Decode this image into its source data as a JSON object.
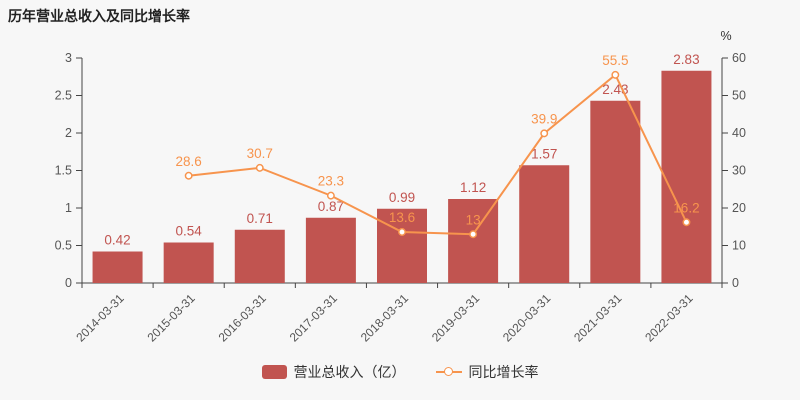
{
  "title": "历年营业总收入及同比增长率",
  "chart_data": {
    "type": "bar+line",
    "categories": [
      "2014-03-31",
      "2015-03-31",
      "2016-03-31",
      "2017-03-31",
      "2018-03-31",
      "2019-03-31",
      "2020-03-31",
      "2021-03-31",
      "2022-03-31"
    ],
    "series": [
      {
        "name": "营业总收入（亿）",
        "type": "bar",
        "axis": "left",
        "color": "#c15450",
        "values": [
          0.42,
          0.54,
          0.71,
          0.87,
          0.99,
          1.12,
          1.57,
          2.43,
          2.83
        ]
      },
      {
        "name": "同比增长率",
        "type": "line",
        "axis": "right",
        "color": "#f7944d",
        "values": [
          null,
          28.6,
          30.7,
          23.3,
          13.6,
          13,
          39.9,
          55.5,
          16.2
        ]
      }
    ],
    "left_axis": {
      "min": 0,
      "max": 3,
      "labels": [
        "0",
        "0.5",
        "1",
        "1.5",
        "2",
        "2.5",
        "3"
      ]
    },
    "right_axis": {
      "min": 0,
      "max": 60,
      "labels": [
        "0",
        "10",
        "20",
        "30",
        "40",
        "50",
        "60"
      ],
      "unit": "%"
    },
    "grid": false,
    "legend_position": "bottom",
    "xlabel": "",
    "ylabel": ""
  },
  "legend": {
    "items": [
      {
        "label": "营业总收入（亿）",
        "type": "bar",
        "color": "#c15450"
      },
      {
        "label": "同比增长率",
        "type": "line",
        "color": "#f7944d"
      }
    ]
  },
  "colors": {
    "background": "#f7f7f7",
    "axis_line": "#444444",
    "tick_label": "#555555",
    "title_text": "#222222"
  }
}
